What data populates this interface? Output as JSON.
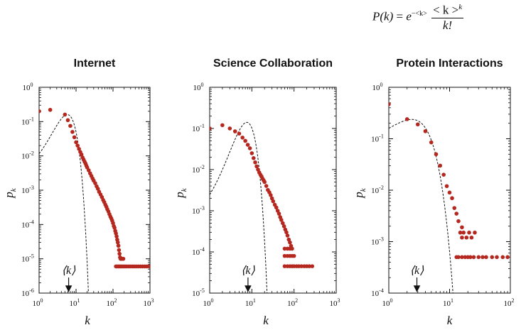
{
  "formula": {
    "lhs": "P(k)",
    "eq": "=",
    "base": "e",
    "exp": "−<k>",
    "num_base": "< k >",
    "num_exp": "k",
    "den": "k!"
  },
  "colors": {
    "points": "#b5281f",
    "dashed": "#111111",
    "axis": "#111111"
  },
  "chart_data": [
    {
      "type": "scatter",
      "title": "Internet",
      "xlabel": "k",
      "ylabel": "p",
      "ylabel_sub": "k",
      "mean_label": "⟨k⟩",
      "log_x": true,
      "log_y": true,
      "xlim": [
        1,
        1000
      ],
      "ylim": [
        1e-06,
        1
      ],
      "mean_k": 6.3,
      "x_ticks": [
        {
          "v": 1,
          "b": "10",
          "e": "0"
        },
        {
          "v": 10,
          "b": "10",
          "e": "1"
        },
        {
          "v": 100,
          "b": "10",
          "e": "2"
        },
        {
          "v": 1000,
          "b": "10",
          "e": "3"
        }
      ],
      "y_ticks": [
        {
          "v": 1e-06,
          "b": "10",
          "e": "-6"
        },
        {
          "v": 1e-05,
          "b": "10",
          "e": "-5"
        },
        {
          "v": 0.0001,
          "b": "10",
          "e": "-4"
        },
        {
          "v": 0.001,
          "b": "10",
          "e": "-3"
        },
        {
          "v": 0.01,
          "b": "10",
          "e": "-2"
        },
        {
          "v": 0.1,
          "b": "10",
          "e": "-1"
        },
        {
          "v": 1,
          "b": "10",
          "e": "0"
        }
      ],
      "points": [
        [
          1,
          0.2
        ],
        [
          2,
          0.22
        ],
        [
          5,
          0.16
        ],
        [
          6,
          0.11
        ],
        [
          7,
          0.075
        ],
        [
          8,
          0.05
        ],
        [
          9,
          0.035
        ],
        [
          10,
          0.025
        ],
        [
          11,
          0.02
        ],
        [
          12,
          0.016
        ],
        [
          13,
          0.013
        ],
        [
          14,
          0.011
        ],
        [
          15,
          0.009
        ],
        [
          16,
          0.0078
        ],
        [
          17,
          0.0068
        ],
        [
          18,
          0.006
        ],
        [
          19,
          0.0052
        ],
        [
          20,
          0.0046
        ],
        [
          22,
          0.0038
        ],
        [
          24,
          0.0031
        ],
        [
          26,
          0.0026
        ],
        [
          28,
          0.0022
        ],
        [
          30,
          0.0019
        ],
        [
          33,
          0.0016
        ],
        [
          36,
          0.0013
        ],
        [
          39,
          0.0011
        ],
        [
          42,
          0.0009
        ],
        [
          46,
          0.00075
        ],
        [
          50,
          0.00063
        ],
        [
          54,
          0.00052
        ],
        [
          58,
          0.00045
        ],
        [
          62,
          0.00038
        ],
        [
          66,
          0.00033
        ],
        [
          70,
          0.00028
        ],
        [
          75,
          0.00024
        ],
        [
          80,
          0.0002
        ],
        [
          85,
          0.00017
        ],
        [
          90,
          0.00015
        ],
        [
          95,
          0.00013
        ],
        [
          100,
          0.00011
        ],
        [
          105,
          9e-05
        ],
        [
          110,
          8e-05
        ],
        [
          115,
          6.5e-05
        ],
        [
          120,
          5.5e-05
        ],
        [
          125,
          4.5e-05
        ],
        [
          130,
          3.6e-05
        ],
        [
          135,
          3e-05
        ],
        [
          140,
          2.4e-05
        ],
        [
          145,
          1.8e-05
        ],
        [
          150,
          1.4e-05
        ],
        [
          155,
          1.1e-05
        ],
        [
          160,
          1e-05
        ],
        [
          165,
          1e-05
        ],
        [
          175,
          1e-05
        ],
        [
          190,
          1e-05
        ],
        [
          120,
          6e-06
        ],
        [
          130,
          6e-06
        ],
        [
          140,
          6e-06
        ],
        [
          150,
          6e-06
        ],
        [
          160,
          6e-06
        ],
        [
          175,
          6e-06
        ],
        [
          190,
          6e-06
        ],
        [
          210,
          6e-06
        ],
        [
          230,
          6e-06
        ],
        [
          260,
          6e-06
        ],
        [
          290,
          6e-06
        ],
        [
          330,
          6e-06
        ],
        [
          370,
          6e-06
        ],
        [
          420,
          6e-06
        ],
        [
          480,
          6e-06
        ],
        [
          550,
          6e-06
        ],
        [
          630,
          6e-06
        ],
        [
          720,
          6e-06
        ],
        [
          820,
          6e-06
        ],
        [
          950,
          6e-06
        ]
      ]
    },
    {
      "type": "scatter",
      "title": "Science Collaboration",
      "xlabel": "k",
      "ylabel": "p",
      "ylabel_sub": "k",
      "mean_label": "⟨k⟩",
      "log_x": true,
      "log_y": true,
      "xlim": [
        1,
        1000
      ],
      "ylim": [
        1e-05,
        1
      ],
      "mean_k": 8.1,
      "x_ticks": [
        {
          "v": 1,
          "b": "10",
          "e": "0"
        },
        {
          "v": 10,
          "b": "10",
          "e": "1"
        },
        {
          "v": 100,
          "b": "10",
          "e": "2"
        },
        {
          "v": 1000,
          "b": "10",
          "e": "3"
        }
      ],
      "y_ticks": [
        {
          "v": 1e-05,
          "b": "10",
          "e": "-5"
        },
        {
          "v": 0.0001,
          "b": "10",
          "e": "-4"
        },
        {
          "v": 0.001,
          "b": "10",
          "e": "-3"
        },
        {
          "v": 0.01,
          "b": "10",
          "e": "-2"
        },
        {
          "v": 0.1,
          "b": "10",
          "e": "-1"
        },
        {
          "v": 1,
          "b": "10",
          "e": "0"
        }
      ],
      "points": [
        [
          1,
          0.1
        ],
        [
          2,
          0.12
        ],
        [
          3,
          0.1
        ],
        [
          4,
          0.085
        ],
        [
          5,
          0.075
        ],
        [
          6,
          0.06
        ],
        [
          7,
          0.05
        ],
        [
          8,
          0.04
        ],
        [
          9,
          0.033
        ],
        [
          10,
          0.025
        ],
        [
          11,
          0.019
        ],
        [
          12,
          0.015
        ],
        [
          13,
          0.012
        ],
        [
          14,
          0.01
        ],
        [
          15,
          0.0085
        ],
        [
          16,
          0.0075
        ],
        [
          17,
          0.0068
        ],
        [
          18,
          0.006
        ],
        [
          19,
          0.0055
        ],
        [
          20,
          0.005
        ],
        [
          22,
          0.004
        ],
        [
          24,
          0.0032
        ],
        [
          26,
          0.0028
        ],
        [
          28,
          0.0024
        ],
        [
          30,
          0.002
        ],
        [
          32,
          0.0017
        ],
        [
          35,
          0.0014
        ],
        [
          38,
          0.0012
        ],
        [
          41,
          0.001
        ],
        [
          44,
          0.00085
        ],
        [
          47,
          0.0007
        ],
        [
          50,
          0.0006
        ],
        [
          54,
          0.0005
        ],
        [
          58,
          0.00042
        ],
        [
          62,
          0.00035
        ],
        [
          66,
          0.0003
        ],
        [
          70,
          0.00025
        ],
        [
          75,
          0.0002
        ],
        [
          80,
          0.00017
        ],
        [
          85,
          0.00014
        ],
        [
          60,
          0.00012
        ],
        [
          70,
          0.00012
        ],
        [
          80,
          0.00012
        ],
        [
          90,
          0.00012
        ],
        [
          60,
          8e-05
        ],
        [
          70,
          8e-05
        ],
        [
          80,
          8e-05
        ],
        [
          90,
          8e-05
        ],
        [
          100,
          8e-05
        ],
        [
          60,
          4.5e-05
        ],
        [
          70,
          4.5e-05
        ],
        [
          80,
          4.5e-05
        ],
        [
          90,
          4.5e-05
        ],
        [
          100,
          4.5e-05
        ],
        [
          115,
          4.5e-05
        ],
        [
          130,
          4.5e-05
        ],
        [
          150,
          4.5e-05
        ],
        [
          175,
          4.5e-05
        ],
        [
          200,
          4.5e-05
        ],
        [
          230,
          4.5e-05
        ],
        [
          270,
          4.5e-05
        ]
      ]
    },
    {
      "type": "scatter",
      "title": "Protein Interactions",
      "xlabel": "k",
      "ylabel": "p",
      "ylabel_sub": "k",
      "mean_label": "⟨k⟩",
      "log_x": true,
      "log_y": true,
      "xlim": [
        1,
        100
      ],
      "ylim": [
        0.0001,
        1
      ],
      "mean_k": 2.9,
      "x_ticks": [
        {
          "v": 1,
          "b": "10",
          "e": "0"
        },
        {
          "v": 10,
          "b": "10",
          "e": "1"
        },
        {
          "v": 100,
          "b": "10",
          "e": "2"
        }
      ],
      "y_ticks": [
        {
          "v": 0.0001,
          "b": "10",
          "e": "-4"
        },
        {
          "v": 0.001,
          "b": "10",
          "e": "-3"
        },
        {
          "v": 0.01,
          "b": "10",
          "e": "-2"
        },
        {
          "v": 0.1,
          "b": "10",
          "e": "-1"
        },
        {
          "v": 1,
          "b": "10",
          "e": "0"
        }
      ],
      "points": [
        [
          1,
          0.47
        ],
        [
          2,
          0.24
        ],
        [
          3,
          0.19
        ],
        [
          4,
          0.14
        ],
        [
          5,
          0.085
        ],
        [
          6,
          0.05
        ],
        [
          7,
          0.03
        ],
        [
          8,
          0.02
        ],
        [
          9,
          0.012
        ],
        [
          10,
          0.009
        ],
        [
          11,
          0.007
        ],
        [
          12,
          0.0045
        ],
        [
          13,
          0.0035
        ],
        [
          14,
          0.0025
        ],
        [
          16,
          0.0019
        ],
        [
          15,
          0.0015
        ],
        [
          16,
          0.0012
        ],
        [
          17,
          0.0015
        ],
        [
          19,
          0.0012
        ],
        [
          21,
          0.0015
        ],
        [
          23,
          0.0012
        ],
        [
          26,
          0.0015
        ],
        [
          13,
          0.0005
        ],
        [
          14,
          0.0005
        ],
        [
          16,
          0.0005
        ],
        [
          18,
          0.0005
        ],
        [
          20,
          0.0005
        ],
        [
          22,
          0.0005
        ],
        [
          25,
          0.0005
        ],
        [
          30,
          0.0005
        ],
        [
          35,
          0.0005
        ],
        [
          40,
          0.0005
        ],
        [
          50,
          0.0005
        ],
        [
          60,
          0.0005
        ],
        [
          75,
          0.0005
        ],
        [
          90,
          0.0005
        ]
      ]
    }
  ]
}
